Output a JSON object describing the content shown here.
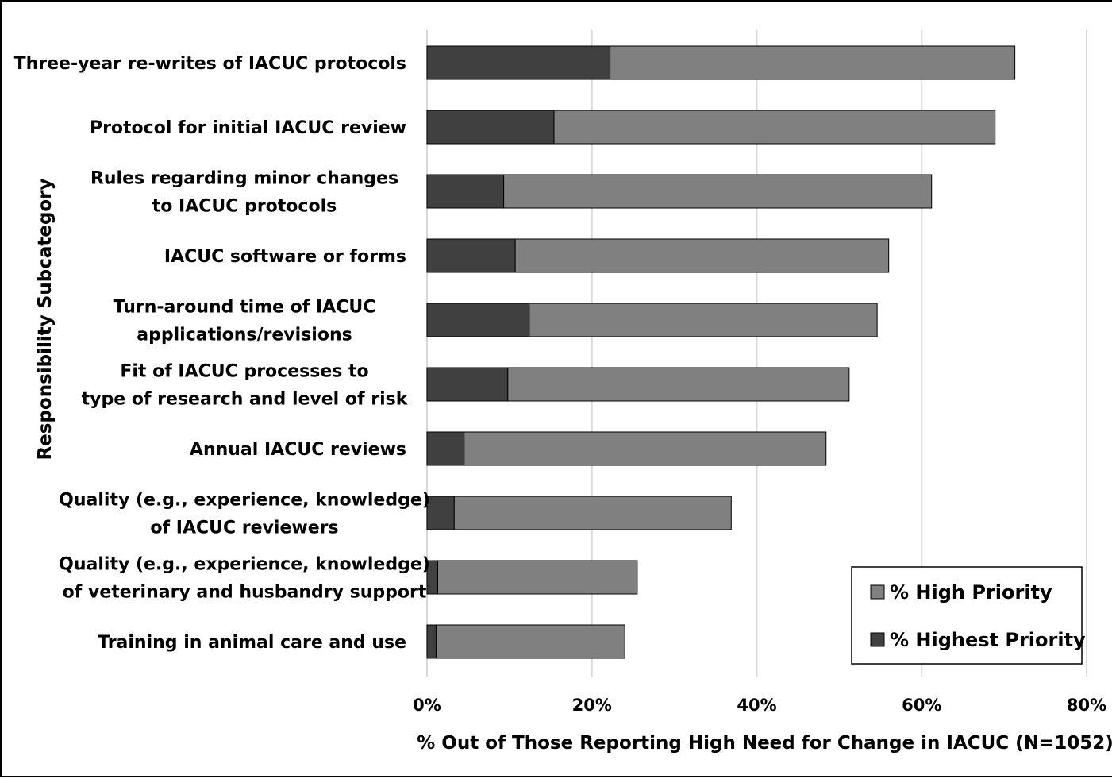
{
  "chart_data": {
    "type": "bar",
    "orientation": "horizontal",
    "stacked": true,
    "categories": [
      [
        "Three-year re-writes of IACUC protocols"
      ],
      [
        "Protocol for initial IACUC review"
      ],
      [
        "Rules regarding minor changes",
        "to IACUC protocols"
      ],
      [
        "IACUC software or forms"
      ],
      [
        "Turn-around time of IACUC",
        "applications/revisions"
      ],
      [
        "Fit of IACUC processes to",
        "type of research and level of risk"
      ],
      [
        "Annual IACUC reviews"
      ],
      [
        "Quality (e.g., experience, knowledge)",
        "of IACUC reviewers"
      ],
      [
        "Quality (e.g., experience, knowledge)",
        "of veterinary and husbandry support"
      ],
      [
        "Training in animal care and use"
      ]
    ],
    "series": [
      {
        "name": "% Highest Priority",
        "color": "#404040",
        "values": [
          22.2,
          15.4,
          9.3,
          10.7,
          12.4,
          9.8,
          4.5,
          3.3,
          1.3,
          1.1
        ]
      },
      {
        "name": "% High Priority",
        "color": "#808080",
        "values": [
          49.1,
          53.5,
          51.9,
          45.3,
          42.2,
          41.4,
          43.9,
          33.6,
          24.2,
          22.9
        ]
      }
    ],
    "legend_order": [
      1,
      0
    ],
    "xlim": [
      0,
      80
    ],
    "xticks": [
      0,
      20,
      40,
      60,
      80
    ],
    "xtick_labels": [
      "0%",
      "20%",
      "40%",
      "60%",
      "80%"
    ],
    "xlabel": "% Out of Those Reporting High Need for Change in IACUC (N=1052)",
    "ylabel": "Responsibility Subcategory",
    "grid": "vertical",
    "legend_position": "bottom-right"
  }
}
